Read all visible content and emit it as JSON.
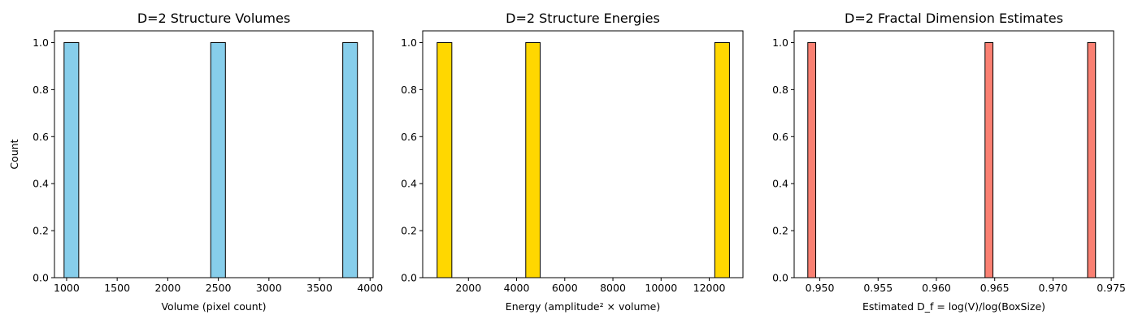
{
  "figure": {
    "background": "#ffffff"
  },
  "chart_data": [
    {
      "type": "bar",
      "title": "D=2 Structure Volumes",
      "xlabel": "Volume (pixel count)",
      "ylabel": "Count",
      "xlim": [
        880,
        4030
      ],
      "ylim": [
        0,
        1.05
      ],
      "xticks": [
        1000,
        1500,
        2000,
        2500,
        3000,
        3500,
        4000
      ],
      "xtick_labels": [
        "1000",
        "1500",
        "2000",
        "2500",
        "3000",
        "3500",
        "4000"
      ],
      "yticks": [
        0.0,
        0.2,
        0.4,
        0.6,
        0.8,
        1.0
      ],
      "ytick_labels": [
        "0.0",
        "0.2",
        "0.4",
        "0.6",
        "0.8",
        "1.0"
      ],
      "bars": [
        {
          "x0": 975,
          "x1": 1120,
          "count": 1
        },
        {
          "x0": 2425,
          "x1": 2570,
          "count": 1
        },
        {
          "x0": 3730,
          "x1": 3875,
          "count": 1
        }
      ],
      "color": "#87ceeb",
      "edge_color": "#000000",
      "grid": false
    },
    {
      "type": "bar",
      "title": "D=2 Structure Energies",
      "xlabel": "Energy (amplitude² × volume)",
      "ylabel": "",
      "xlim": [
        100,
        13400
      ],
      "ylim": [
        0,
        1.05
      ],
      "xticks": [
        2000,
        4000,
        6000,
        8000,
        10000,
        12000
      ],
      "xtick_labels": [
        "2000",
        "4000",
        "6000",
        "8000",
        "10000",
        "12000"
      ],
      "yticks": [
        0.0,
        0.2,
        0.4,
        0.6,
        0.8,
        1.0
      ],
      "ytick_labels": [
        "0.0",
        "0.2",
        "0.4",
        "0.6",
        "0.8",
        "1.0"
      ],
      "bars": [
        {
          "x0": 700,
          "x1": 1310,
          "count": 1
        },
        {
          "x0": 4380,
          "x1": 4980,
          "count": 1
        },
        {
          "x0": 12230,
          "x1": 12840,
          "count": 1
        }
      ],
      "color": "#ffd700",
      "edge_color": "#000000",
      "grid": false
    },
    {
      "type": "bar",
      "title": "D=2 Fractal Dimension Estimates",
      "xlabel": "Estimated D_f = log(V)/log(BoxSize)",
      "ylabel": "",
      "xlim": [
        0.9478,
        0.9752
      ],
      "ylim": [
        0,
        1.05
      ],
      "xticks": [
        0.95,
        0.955,
        0.96,
        0.965,
        0.97,
        0.975
      ],
      "xtick_labels": [
        "0.950",
        "0.955",
        "0.960",
        "0.965",
        "0.970",
        "0.975"
      ],
      "yticks": [
        0.0,
        0.2,
        0.4,
        0.6,
        0.8,
        1.0
      ],
      "ytick_labels": [
        "0.0",
        "0.2",
        "0.4",
        "0.6",
        "0.8",
        "1.0"
      ],
      "bars": [
        {
          "x0": 0.94897,
          "x1": 0.94965,
          "count": 1
        },
        {
          "x0": 0.96417,
          "x1": 0.96485,
          "count": 1
        },
        {
          "x0": 0.97297,
          "x1": 0.97365,
          "count": 1
        }
      ],
      "color": "#fa8072",
      "edge_color": "#000000",
      "grid": false
    }
  ]
}
